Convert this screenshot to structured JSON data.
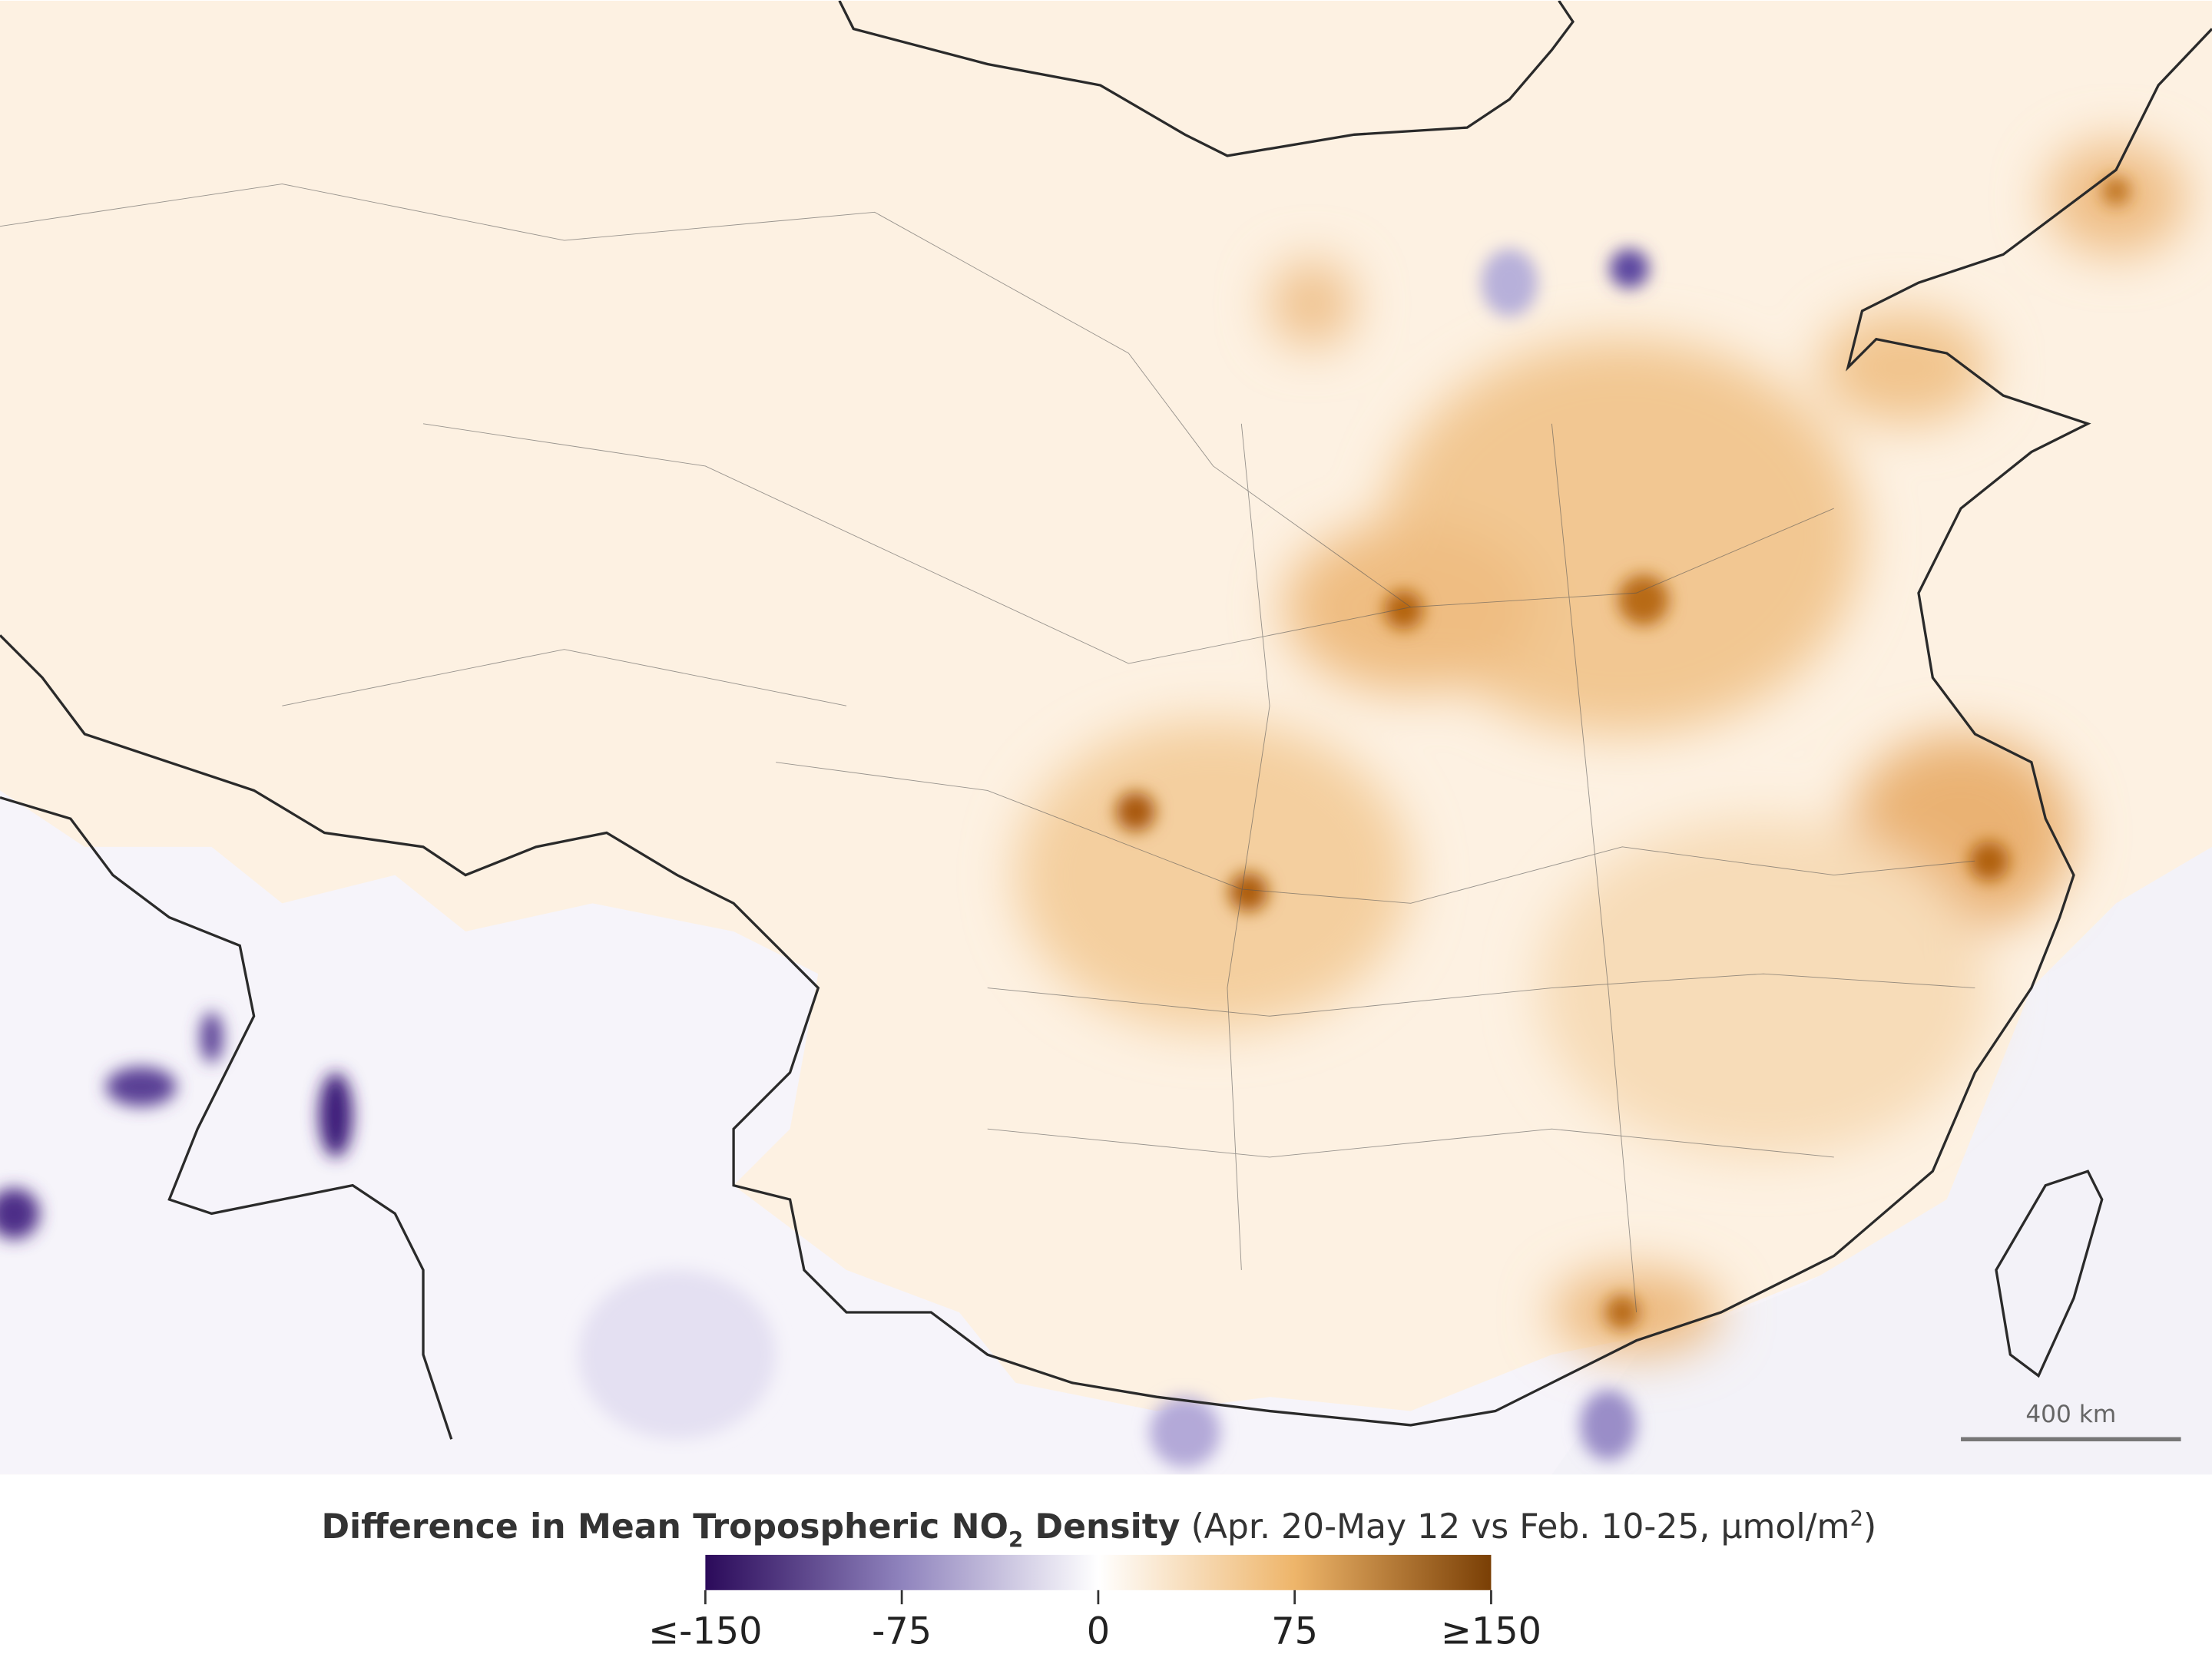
{
  "map": {
    "title_main": "Difference in Mean Tropospheric NO",
    "title_sub": "2",
    "title_tail": " Density",
    "title_paren": "(Apr. 20-May 12 vs Feb. 10-25, μmol/m",
    "title_sup": "2",
    "title_close": ")",
    "scale_bar": "400 km"
  },
  "colorbar": {
    "lim": [
      -150,
      150
    ],
    "ticks": [
      {
        "value": -150,
        "label": "≤-150"
      },
      -75,
      0,
      75,
      {
        "value": 150,
        "label": "≥150"
      }
    ],
    "colors": [
      "#2b0a5a",
      "#8f83bd",
      "#ffffff",
      "#eeb56a",
      "#7a3f05"
    ]
  }
}
